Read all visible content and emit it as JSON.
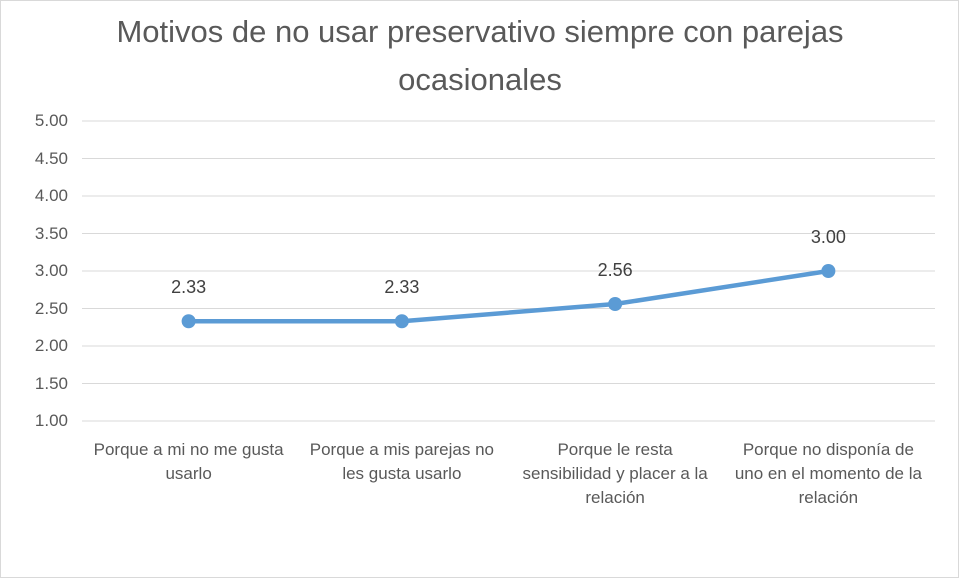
{
  "chart_data": {
    "type": "line",
    "title": "Motivos de no usar preservativo siempre con parejas ocasionales",
    "categories": [
      "Porque a mi no me gusta usarlo",
      "Porque a mis parejas no les gusta usarlo",
      "Porque le resta sensibilidad y placer a la relación",
      "Porque no disponía de uno en el momento de la relación"
    ],
    "values": [
      2.33,
      2.33,
      2.56,
      3.0
    ],
    "value_labels": [
      "2.33",
      "2.33",
      "2.56",
      "3.00"
    ],
    "color": "#5b9bd5",
    "ylim": [
      1,
      5
    ],
    "yticks": [
      {
        "value": 1,
        "label": "1.00"
      },
      {
        "value": 1.5,
        "label": "1.50"
      },
      {
        "value": 2,
        "label": "2.00"
      },
      {
        "value": 2.5,
        "label": "2.50"
      },
      {
        "value": 3,
        "label": "3.00"
      },
      {
        "value": 3.5,
        "label": "3.50"
      },
      {
        "value": 4,
        "label": "4.00"
      },
      {
        "value": 4.5,
        "label": "4.50"
      },
      {
        "value": 5,
        "label": "5.00"
      }
    ],
    "grid": true
  }
}
